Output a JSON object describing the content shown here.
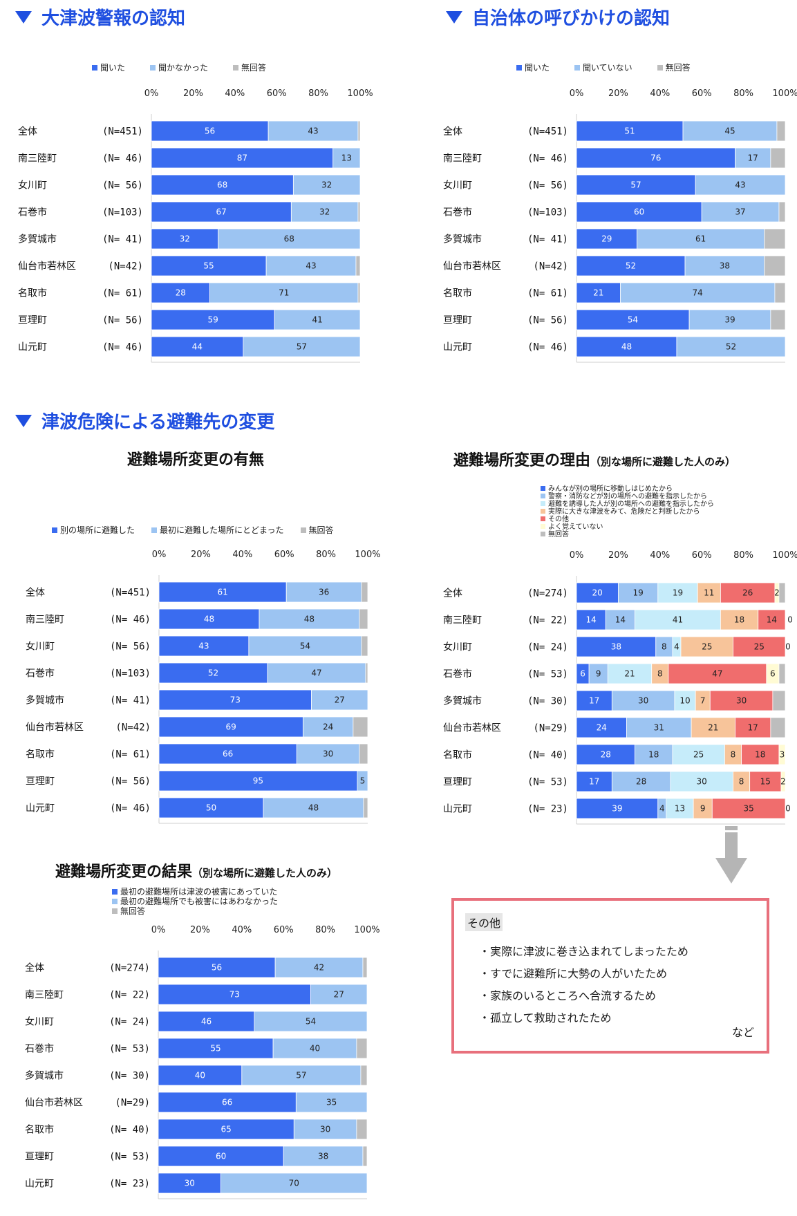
{
  "headers": {
    "h1": "大津波警報の認知",
    "h2": "自治体の呼びかけの認知",
    "h3": "津波危険による避難先の変更",
    "sub1": "避難場所変更の有無",
    "sub2_main": "避難場所変更の理由",
    "sub2_note": "（別な場所に避難した人のみ）",
    "sub3_main": "避難場所変更の結果",
    "sub3_note": "（別な場所に避難した人のみ）"
  },
  "other_box": {
    "title": "その他",
    "items": [
      "・実際に津波に巻き込まれてしまったため",
      "・すでに避難所に大勢の人がいたため",
      "・家族のいるところへ合流するため",
      "・孤立して救助されたため"
    ],
    "etc": "など"
  },
  "colors": {
    "blue": "#3a6cf0",
    "lightblue": "#9cc4f2",
    "cyan": "#c6ecfa",
    "peach": "#f7c49a",
    "red": "#f06d6d",
    "cream": "#fffbd4",
    "gray": "#bdbdbd",
    "header": "#1f4fe0"
  },
  "chart_data": [
    {
      "id": "warning",
      "type": "bar",
      "orientation": "horizontal-stacked-100",
      "title": "大津波警報の認知",
      "x_ticks": [
        "0%",
        "20%",
        "40%",
        "60%",
        "80%",
        "100%"
      ],
      "xlim": [
        0,
        100
      ],
      "categories": [
        "全体",
        "南三陸町",
        "女川町",
        "石巻市",
        "多賀城市",
        "仙台市若林区",
        "名取市",
        "亘理町",
        "山元町"
      ],
      "n_labels": [
        "(N=451)",
        "(N= 46)",
        "(N= 56)",
        "(N=103)",
        "(N= 41)",
        "(N=42)",
        "(N= 61)",
        "(N= 56)",
        "(N= 46)"
      ],
      "series": [
        {
          "name": "聞いた",
          "color": "#3a6cf0",
          "values": [
            56,
            87,
            68,
            67,
            32,
            55,
            28,
            59,
            44
          ]
        },
        {
          "name": "聞かなかった",
          "color": "#9cc4f2",
          "values": [
            43,
            13,
            32,
            32,
            68,
            43,
            71,
            41,
            57
          ]
        },
        {
          "name": "無回答",
          "color": "#bdbdbd",
          "values": [
            1,
            0,
            0,
            1,
            0,
            2,
            1,
            0,
            0
          ]
        }
      ],
      "shown_labels": [
        [
          "56",
          "87",
          "68",
          "67",
          "32",
          "55",
          "28",
          "59",
          "44"
        ],
        [
          "43",
          "13",
          "32",
          "32",
          "68",
          "43",
          "71",
          "41",
          "57"
        ],
        [
          "",
          "",
          "",
          "",
          "",
          "",
          "",
          "",
          ""
        ]
      ]
    },
    {
      "id": "municipal",
      "type": "bar",
      "orientation": "horizontal-stacked-100",
      "title": "自治体の呼びかけの認知",
      "x_ticks": [
        "0%",
        "20%",
        "40%",
        "60%",
        "80%",
        "100%"
      ],
      "xlim": [
        0,
        100
      ],
      "categories": [
        "全体",
        "南三陸町",
        "女川町",
        "石巻市",
        "多賀城市",
        "仙台市若林区",
        "名取市",
        "亘理町",
        "山元町"
      ],
      "n_labels": [
        "(N=451)",
        "(N= 46)",
        "(N= 56)",
        "(N=103)",
        "(N= 41)",
        "(N=42)",
        "(N= 61)",
        "(N= 56)",
        "(N= 46)"
      ],
      "series": [
        {
          "name": "聞いた",
          "color": "#3a6cf0",
          "values": [
            51,
            76,
            57,
            60,
            29,
            52,
            21,
            54,
            48
          ]
        },
        {
          "name": "聞いていない",
          "color": "#9cc4f2",
          "values": [
            45,
            17,
            43,
            37,
            61,
            38,
            74,
            39,
            52
          ]
        },
        {
          "name": "無回答",
          "color": "#bdbdbd",
          "values": [
            4,
            7,
            0,
            3,
            10,
            10,
            5,
            7,
            0
          ]
        }
      ],
      "shown_labels": [
        [
          "51",
          "76",
          "57",
          "60",
          "29",
          "52",
          "21",
          "54",
          "48"
        ],
        [
          "45",
          "17",
          "43",
          "37",
          "61",
          "38",
          "74",
          "39",
          "52"
        ],
        [
          "",
          "",
          "",
          "",
          "",
          "",
          "",
          "",
          ""
        ]
      ]
    },
    {
      "id": "change",
      "type": "bar",
      "orientation": "horizontal-stacked-100",
      "title": "避難場所変更の有無",
      "x_ticks": [
        "0%",
        "20%",
        "40%",
        "60%",
        "80%",
        "100%"
      ],
      "xlim": [
        0,
        100
      ],
      "categories": [
        "全体",
        "南三陸町",
        "女川町",
        "石巻市",
        "多賀城市",
        "仙台市若林区",
        "名取市",
        "亘理町",
        "山元町"
      ],
      "n_labels": [
        "(N=451)",
        "(N= 46)",
        "(N= 56)",
        "(N=103)",
        "(N= 41)",
        "(N=42)",
        "(N= 61)",
        "(N= 56)",
        "(N= 46)"
      ],
      "series": [
        {
          "name": "別の場所に避難した",
          "color": "#3a6cf0",
          "values": [
            61,
            48,
            43,
            52,
            73,
            69,
            66,
            95,
            50
          ]
        },
        {
          "name": "最初に避難した場所にとどまった",
          "color": "#9cc4f2",
          "values": [
            36,
            48,
            54,
            47,
            27,
            24,
            30,
            5,
            48
          ]
        },
        {
          "name": "無回答",
          "color": "#bdbdbd",
          "values": [
            3,
            4,
            3,
            1,
            0,
            7,
            4,
            0,
            2
          ]
        }
      ],
      "shown_labels": [
        [
          "61",
          "48",
          "43",
          "52",
          "73",
          "69",
          "66",
          "95",
          "50"
        ],
        [
          "36",
          "48",
          "54",
          "47",
          "27",
          "24",
          "30",
          "5",
          "48"
        ],
        [
          "",
          "",
          "",
          "",
          "",
          "",
          "",
          "",
          ""
        ]
      ]
    },
    {
      "id": "reason",
      "type": "bar",
      "orientation": "horizontal-stacked-100",
      "title": "避難場所変更の理由",
      "x_ticks": [
        "0%",
        "20%",
        "40%",
        "60%",
        "80%",
        "100%"
      ],
      "xlim": [
        0,
        100
      ],
      "categories": [
        "全体",
        "南三陸町",
        "女川町",
        "石巻市",
        "多賀城市",
        "仙台市若林区",
        "名取市",
        "亘理町",
        "山元町"
      ],
      "n_labels": [
        "(N=274)",
        "(N= 22)",
        "(N= 24)",
        "(N= 53)",
        "(N= 30)",
        "(N=29)",
        "(N= 40)",
        "(N= 53)",
        "(N= 23)"
      ],
      "series": [
        {
          "name": "みんなが別の場所に移動しはじめたから",
          "color": "#3a6cf0",
          "values": [
            20,
            14,
            38,
            6,
            17,
            24,
            28,
            17,
            39
          ]
        },
        {
          "name": "警察・消防などが別の場所への避難を指示したから",
          "color": "#9cc4f2",
          "values": [
            19,
            14,
            8,
            9,
            30,
            31,
            18,
            28,
            4
          ]
        },
        {
          "name": "避難を誘導した人が別の場所への避難を指示したから",
          "color": "#c6ecfa",
          "values": [
            19,
            41,
            4,
            21,
            10,
            0,
            25,
            30,
            13
          ]
        },
        {
          "name": "実際に大きな津波をみて、危険だと判断したから",
          "color": "#f7c49a",
          "values": [
            11,
            18,
            25,
            8,
            7,
            21,
            8,
            8,
            9
          ]
        },
        {
          "name": "その他",
          "color": "#f06d6d",
          "values": [
            26,
            14,
            25,
            47,
            30,
            17,
            18,
            15,
            35
          ]
        },
        {
          "name": "よく覚えていない",
          "color": "#fffbd4",
          "values": [
            2,
            0,
            0,
            6,
            0,
            0,
            3,
            2,
            0
          ]
        },
        {
          "name": "無回答",
          "color": "#bdbdbd",
          "values": [
            3,
            0,
            0,
            3,
            7,
            7,
            2,
            0,
            0
          ]
        }
      ],
      "shown_labels": [
        [
          "20",
          "14",
          "38",
          "6",
          "17",
          "24",
          "28",
          "17",
          "39"
        ],
        [
          "19",
          "14",
          "8",
          "9",
          "30",
          "31",
          "18",
          "28",
          "4"
        ],
        [
          "19",
          "41",
          "4",
          "21",
          "10",
          "0",
          "25",
          "30",
          "13"
        ],
        [
          "11",
          "18",
          "25",
          "8",
          "7",
          "21",
          "8",
          "8",
          "9"
        ],
        [
          "26",
          "14",
          "25",
          "47",
          "30",
          "17",
          "18",
          "15",
          "35"
        ],
        [
          "2",
          "0",
          "0",
          "6",
          "0",
          "0",
          "3",
          "2",
          "0"
        ],
        [
          "",
          "",
          "",
          "",
          "",
          "",
          "",
          "",
          ""
        ]
      ]
    },
    {
      "id": "result",
      "type": "bar",
      "orientation": "horizontal-stacked-100",
      "title": "避難場所変更の結果",
      "x_ticks": [
        "0%",
        "20%",
        "40%",
        "60%",
        "80%",
        "100%"
      ],
      "xlim": [
        0,
        100
      ],
      "categories": [
        "全体",
        "南三陸町",
        "女川町",
        "石巻市",
        "多賀城市",
        "仙台市若林区",
        "名取市",
        "亘理町",
        "山元町"
      ],
      "n_labels": [
        "(N=274)",
        "(N= 22)",
        "(N= 24)",
        "(N= 53)",
        "(N= 30)",
        "(N=29)",
        "(N= 40)",
        "(N= 53)",
        "(N= 23)"
      ],
      "series": [
        {
          "name": "最初の避難場所は津波の被害にあっていた",
          "color": "#3a6cf0",
          "values": [
            56,
            73,
            46,
            55,
            40,
            66,
            65,
            60,
            30
          ]
        },
        {
          "name": "最初の避難場所でも被害にはあわなかった",
          "color": "#9cc4f2",
          "values": [
            42,
            27,
            54,
            40,
            57,
            35,
            30,
            38,
            70
          ]
        },
        {
          "name": "無回答",
          "color": "#bdbdbd",
          "values": [
            2,
            0,
            0,
            5,
            3,
            0,
            5,
            2,
            0
          ]
        }
      ],
      "shown_labels": [
        [
          "56",
          "73",
          "46",
          "55",
          "40",
          "66",
          "65",
          "60",
          "30"
        ],
        [
          "42",
          "27",
          "54",
          "40",
          "57",
          "35",
          "30",
          "38",
          "70"
        ],
        [
          "",
          "",
          "",
          "",
          "",
          "",
          "",
          "",
          ""
        ]
      ]
    }
  ]
}
